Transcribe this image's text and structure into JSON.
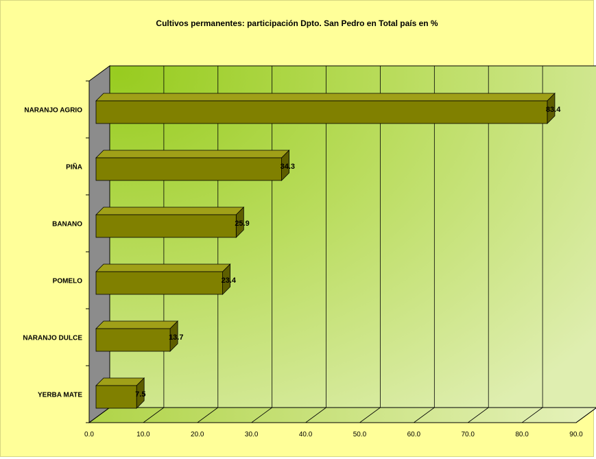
{
  "chart_data": {
    "type": "bar",
    "orientation": "horizontal",
    "three_d": true,
    "title": "Cultivos permanentes: participación Dpto. San Pedro en Total país en %",
    "categories": [
      "NARANJO AGRIO",
      "PIÑA",
      "BANANO",
      "POMELO",
      "NARANJO DULCE",
      "YERBA MATE"
    ],
    "values": [
      83.4,
      34.3,
      25.9,
      23.4,
      13.7,
      7.5
    ],
    "value_labels": [
      "83.4",
      "34.3",
      "25.9",
      "23.4",
      "13.7",
      "7.5"
    ],
    "xlim": [
      0,
      90
    ],
    "x_ticks": [
      "0.0",
      "10.0",
      "20.0",
      "30.0",
      "40.0",
      "50.0",
      "60.0",
      "70.0",
      "80.0",
      "90.0"
    ],
    "xlabel": "",
    "ylabel": "",
    "grid": true,
    "legend": "none",
    "colors": {
      "background": "#ffff99",
      "bar_front": "#808000",
      "bar_top": "#a0a018",
      "bar_side": "#5e5e00",
      "wall_left": "#8c8c8c",
      "plot_center": "#98cc20",
      "plot_edge": "#d8e8a8"
    }
  }
}
